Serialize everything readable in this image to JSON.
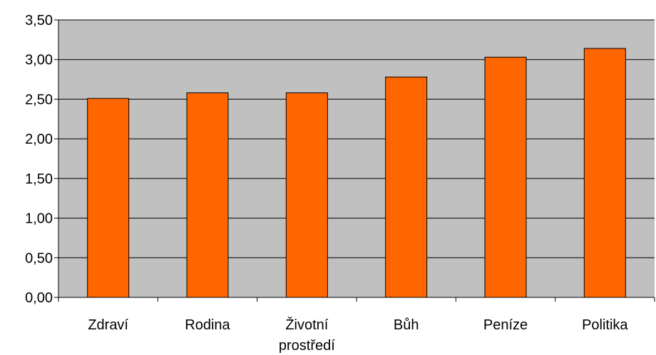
{
  "chart_data": {
    "type": "bar",
    "categories": [
      "Zdraví",
      "Rodina",
      "Životní prostředí",
      "Bůh",
      "Peníze",
      "Politika"
    ],
    "category_label_lines": [
      [
        "Zdraví"
      ],
      [
        "Rodina"
      ],
      [
        "Životní",
        "prostředí"
      ],
      [
        "Bůh"
      ],
      [
        "Peníze"
      ],
      [
        "Politika"
      ]
    ],
    "values": [
      2.51,
      2.58,
      2.58,
      2.78,
      3.03,
      3.14
    ],
    "ylim": [
      0,
      3.5
    ],
    "yticks": [
      0,
      0.5,
      1.0,
      1.5,
      2.0,
      2.5,
      3.0,
      3.5
    ],
    "ytick_labels": [
      "0,00",
      "0,50",
      "1,00",
      "1,50",
      "2,00",
      "2,50",
      "3,00",
      "3,50"
    ],
    "grid": true,
    "title": "",
    "xlabel": "",
    "ylabel": "",
    "colors": {
      "bar_fill": "#FF6600",
      "bar_stroke": "#000000",
      "plot_background": "#C0C0C0",
      "gridline": "#000000"
    }
  }
}
